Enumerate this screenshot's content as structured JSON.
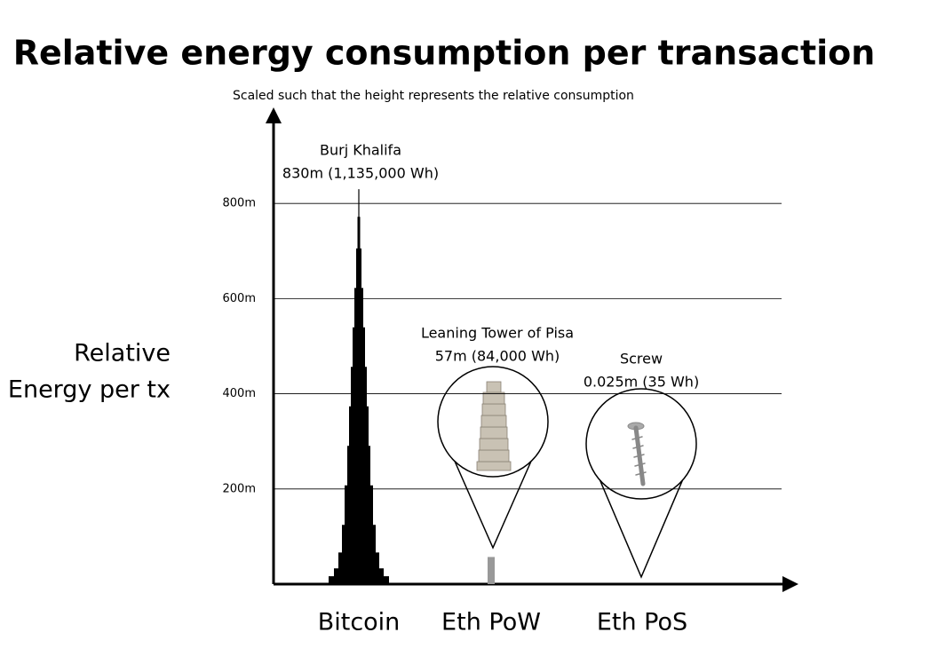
{
  "chart_data": {
    "type": "bar",
    "title": "Relative energy consumption per transaction",
    "subtitle": "Scaled such that the height represents the relative consumption",
    "y_label": [
      "Relative",
      "Energy per tx"
    ],
    "categories": [
      "Bitcoin",
      "Eth PoW",
      "Eth PoS"
    ],
    "landmarks": [
      "Burj Khalifa",
      "Leaning Tower of Pisa",
      "Screw"
    ],
    "values": [
      830,
      57,
      0.025
    ],
    "value_labels": [
      "830m (1,135,000 Wh)",
      "57m (84,000 Wh)",
      "0.025m (35 Wh)"
    ],
    "color": "#000000",
    "ylim": [
      0,
      985
    ],
    "yticks": [
      {
        "value": 200,
        "label": "200m"
      },
      {
        "value": 400,
        "label": "400m"
      },
      {
        "value": 600,
        "label": "600m"
      },
      {
        "value": 800,
        "label": "800m"
      }
    ],
    "grid": true
  }
}
